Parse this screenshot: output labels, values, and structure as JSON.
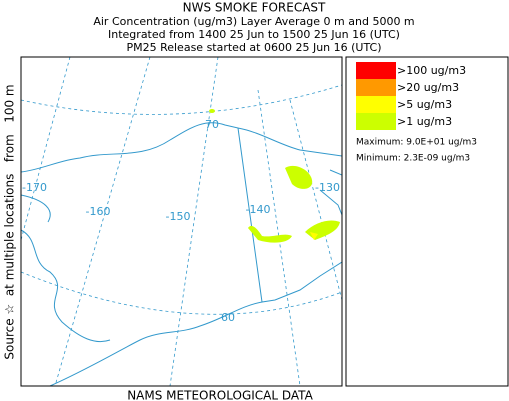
{
  "header": {
    "title": "NWS SMOKE FORECAST",
    "lines": [
      "Air Concentration (ug/m3) Layer Average    0 m and  5000 m",
      "Integrated from 1400 25 Jun to 1500 25 Jun 16 (UTC)",
      "PM25 Release started at 0600 25 Jun 16 (UTC)"
    ]
  },
  "side_label": "Source ☆  at multiple locations   from   100 m",
  "legend": {
    "items": [
      {
        "label": ">100 ug/m3",
        "color": "#ff0000"
      },
      {
        "label": ">20 ug/m3",
        "color": "#ff9900"
      },
      {
        "label": ">5 ug/m3",
        "color": "#ffff00"
      },
      {
        "label": ">1 ug/m3",
        "color": "#ccff00"
      }
    ],
    "maximum": "Maximum: 9.0E+01 ug/m3",
    "minimum": "Minimum: 2.3E-09 ug/m3"
  },
  "map": {
    "labels": [
      "70",
      "-170",
      "-160",
      "-150",
      "-140",
      "-130",
      "60"
    ]
  },
  "footer": "NAMS METEOROLOGICAL DATA"
}
